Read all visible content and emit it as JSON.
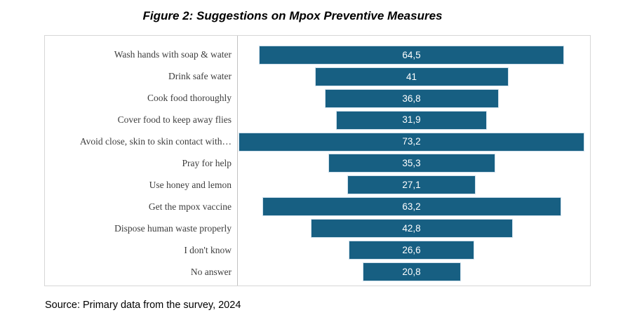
{
  "title": "Figure 2: Suggestions on Mpox Preventive Measures",
  "source": "Source: Primary data from the survey, 2024",
  "colors": {
    "bar_fill": "#175f82",
    "bar_border": "#cfe0ec",
    "value_text": "#ffffff",
    "category_text": "#3d3d3d",
    "box_border": "#d7d7d7",
    "axis_line": "#c2c2c2",
    "background": "#ffffff"
  },
  "chart_data": {
    "type": "bar",
    "subtype": "horizontal-centered-funnel",
    "title": "Figure 2: Suggestions on Mpox Preventive Measures",
    "xlabel": "",
    "ylabel": "",
    "legend": "none",
    "grid": false,
    "value_format": "comma-decimal",
    "xlim": [
      0,
      75
    ],
    "categories": [
      "Wash hands with soap & water",
      "Drink safe water",
      "Cook food thoroughly",
      "Cover food to keep away flies",
      "Avoid close, skin to skin contact with…",
      "Pray for help",
      "Use honey and lemon",
      "Get the mpox vaccine",
      "Dispose human waste properly",
      "I don't know",
      "No answer"
    ],
    "values": [
      64.5,
      41,
      36.8,
      31.9,
      73.2,
      35.3,
      27.1,
      63.2,
      42.8,
      26.6,
      20.8
    ],
    "value_labels": [
      "64,5",
      "41",
      "36,8",
      "31,9",
      "73,2",
      "35,3",
      "27,1",
      "63,2",
      "42,8",
      "26,6",
      "20,8"
    ]
  }
}
